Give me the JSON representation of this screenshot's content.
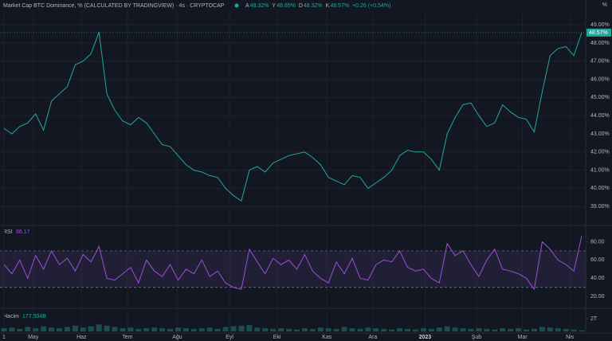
{
  "header": {
    "title": "Market Cap BTC Dominance, % (CALCULATED BY TRADINGVIEW) · 4s · CRYPTOCAP",
    "ohlc": [
      {
        "key": "A",
        "value": "48.32%"
      },
      {
        "key": "Y",
        "value": "48.65%"
      },
      {
        "key": "D",
        "value": "48.32%"
      },
      {
        "key": "K",
        "value": "48.57%"
      }
    ],
    "change": "+0.26 (+0.54%)",
    "unit": "%"
  },
  "chart_data": [
    {
      "type": "line",
      "name": "price",
      "color": "#26a69a",
      "last_label": "48.57%",
      "values": [
        43.3,
        43.0,
        43.4,
        43.6,
        44.1,
        43.2,
        44.8,
        45.2,
        45.6,
        46.8,
        47.0,
        47.4,
        48.6,
        45.2,
        44.3,
        43.7,
        43.5,
        43.9,
        43.6,
        43.0,
        42.4,
        42.3,
        41.8,
        41.3,
        41.0,
        40.9,
        40.7,
        40.6,
        40.0,
        39.6,
        39.3,
        41.0,
        41.2,
        40.9,
        41.4,
        41.6,
        41.8,
        41.9,
        42.0,
        41.7,
        41.3,
        40.6,
        40.4,
        40.2,
        40.7,
        40.6,
        40.0,
        40.3,
        40.6,
        41.0,
        41.8,
        42.1,
        42.0,
        42.0,
        41.6,
        41.0,
        43.0,
        43.9,
        44.6,
        44.7,
        44.0,
        43.4,
        43.6,
        44.6,
        44.2,
        43.9,
        43.8,
        43.1,
        45.3,
        47.3,
        47.7,
        47.8,
        47.3,
        48.57
      ],
      "ylim": [
        38.0,
        49.75
      ],
      "yticks": [
        {
          "value": 39,
          "label": "39.00%"
        },
        {
          "value": 40,
          "label": "40.00%"
        },
        {
          "value": 41,
          "label": "41.00%"
        },
        {
          "value": 42,
          "label": "42.00%"
        },
        {
          "value": 43,
          "label": "43.00%"
        },
        {
          "value": 44,
          "label": "44.00%"
        },
        {
          "value": 45,
          "label": "45.00%"
        },
        {
          "value": 46,
          "label": "46.00%"
        },
        {
          "value": 47,
          "label": "47.00%"
        },
        {
          "value": 48,
          "label": "48.00%"
        },
        {
          "value": 49,
          "label": "49.00%"
        }
      ],
      "xlim": [
        -0.5,
        73.5
      ],
      "xticks": [
        {
          "value": 0,
          "label": "1"
        },
        {
          "value": 3.7,
          "label": "May"
        },
        {
          "value": 9.8,
          "label": "Haz"
        },
        {
          "value": 15.6,
          "label": "Tem"
        },
        {
          "value": 21.9,
          "label": "Ağu"
        },
        {
          "value": 28.5,
          "label": "Eyl"
        },
        {
          "value": 34.5,
          "label": "Eki"
        },
        {
          "value": 40.8,
          "label": "Kas"
        },
        {
          "value": 46.6,
          "label": "Ara"
        },
        {
          "value": 53.2,
          "label": "2023"
        },
        {
          "value": 59.7,
          "label": "Şub"
        },
        {
          "value": 65.5,
          "label": "Mar"
        },
        {
          "value": 71.5,
          "label": "Nis"
        }
      ],
      "grid": true
    },
    {
      "type": "line",
      "name": "RSI",
      "color": "#9c4fd6",
      "values": [
        55,
        45,
        60,
        40,
        65,
        50,
        70,
        55,
        62,
        48,
        66,
        58,
        75,
        40,
        38,
        45,
        52,
        35,
        60,
        48,
        42,
        55,
        38,
        50,
        45,
        60,
        42,
        48,
        35,
        30,
        28,
        72,
        58,
        45,
        62,
        55,
        60,
        50,
        66,
        48,
        40,
        35,
        58,
        45,
        62,
        40,
        38,
        55,
        60,
        58,
        70,
        52,
        48,
        50,
        40,
        35,
        78,
        65,
        70,
        55,
        42,
        60,
        72,
        50,
        48,
        45,
        40,
        28,
        80,
        72,
        60,
        55,
        48,
        86.17
      ],
      "ylim": [
        8,
        97
      ],
      "bands": [
        30,
        70
      ],
      "yticks": [
        {
          "value": 20,
          "label": "20.00"
        },
        {
          "value": 40,
          "label": "40.00"
        },
        {
          "value": 60,
          "label": "60.00"
        },
        {
          "value": 80,
          "label": "80.00"
        }
      ]
    },
    {
      "type": "bar",
      "name": "Hacim",
      "color": "#26a69a66",
      "last_label": "177.504B",
      "values": [
        500000000000.0,
        600000000000.0,
        400000000000.0,
        700000000000.0,
        500000000000.0,
        800000000000.0,
        600000000000.0,
        500000000000.0,
        700000000000.0,
        900000000000.0,
        600000000000.0,
        800000000000.0,
        1100000000000.0,
        900000000000.0,
        700000000000.0,
        500000000000.0,
        600000000000.0,
        400000000000.0,
        500000000000.0,
        600000000000.0,
        500000000000.0,
        400000000000.0,
        600000000000.0,
        500000000000.0,
        400000000000.0,
        500000000000.0,
        600000000000.0,
        400000000000.0,
        700000000000.0,
        800000000000.0,
        900000000000.0,
        1000000000000.0,
        600000000000.0,
        500000000000.0,
        400000000000.0,
        500000000000.0,
        400000000000.0,
        300000000000.0,
        500000000000.0,
        400000000000.0,
        600000000000.0,
        500000000000.0,
        400000000000.0,
        700000000000.0,
        500000000000.0,
        400000000000.0,
        600000000000.0,
        500000000000.0,
        400000000000.0,
        300000000000.0,
        500000000000.0,
        400000000000.0,
        300000000000.0,
        500000000000.0,
        400000000000.0,
        600000000000.0,
        800000000000.0,
        600000000000.0,
        500000000000.0,
        400000000000.0,
        500000000000.0,
        400000000000.0,
        300000000000.0,
        500000000000.0,
        400000000000.0,
        500000000000.0,
        300000000000.0,
        400000000000.0,
        700000000000.0,
        600000000000.0,
        500000000000.0,
        400000000000.0,
        300000000000.0,
        177504000000.0
      ],
      "ylim": [
        0,
        3500000000000.0
      ],
      "yticks": [
        {
          "value": 2000000000000.0,
          "label": "2T"
        }
      ]
    }
  ]
}
